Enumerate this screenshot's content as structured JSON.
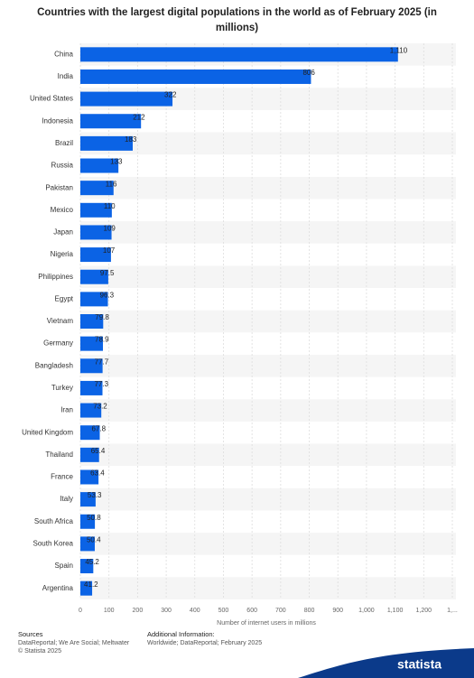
{
  "chart_data": {
    "type": "bar",
    "orientation": "horizontal",
    "title": "Countries with the largest digital populations in the world as of February 2025 (in millions)",
    "categories": [
      "China",
      "India",
      "United States",
      "Indonesia",
      "Brazil",
      "Russia",
      "Pakistan",
      "Mexico",
      "Japan",
      "Nigeria",
      "Philippines",
      "Egypt",
      "Vietnam",
      "Germany",
      "Bangladesh",
      "Turkey",
      "Iran",
      "United Kingdom",
      "Thailand",
      "France",
      "Italy",
      "South Africa",
      "South Korea",
      "Spain",
      "Argentina"
    ],
    "values": [
      1110,
      806,
      322,
      212,
      183,
      133,
      116,
      110,
      109,
      107,
      97.5,
      96.3,
      79.8,
      78.9,
      77.7,
      77.3,
      73.2,
      67.8,
      65.4,
      63.4,
      53.3,
      50.8,
      50.4,
      45.2,
      41.2
    ],
    "value_labels": [
      "1,110",
      "806",
      "322",
      "212",
      "183",
      "133",
      "116",
      "110",
      "109",
      "107",
      "97.5",
      "96.3",
      "79.8",
      "78.9",
      "77.7",
      "77.3",
      "73.2",
      "67.8",
      "65.4",
      "63.4",
      "53.3",
      "50.8",
      "50.4",
      "45.2",
      "41.2"
    ],
    "color": "#0b63e5",
    "xlabel": "Number of internet users in millions",
    "xlim": [
      0,
      1300
    ],
    "xticks": [
      0,
      100,
      200,
      300,
      400,
      500,
      600,
      700,
      800,
      900,
      {
        "value": 1000,
        "label": "1,000"
      },
      {
        "value": 1100,
        "label": "1,100"
      },
      {
        "value": 1200,
        "label": "1,200"
      },
      {
        "value": 1300,
        "label": "1,..."
      }
    ],
    "grid": true
  },
  "footer": {
    "sources_title": "Sources",
    "sources": "DataReportal; We Are Social; Meltwater",
    "copyright": "© Statista 2025",
    "info_title": "Additional Information:",
    "info": "Worldwide; DataReportal; February 2025",
    "logo": "statista"
  }
}
